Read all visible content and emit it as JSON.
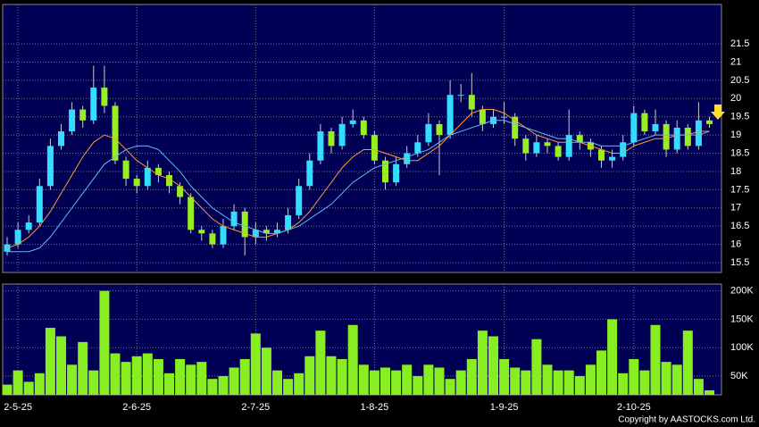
{
  "chart_data": [
    {
      "type": "candlestick",
      "categories": [
        null,
        "2-5-25",
        null,
        null,
        null,
        null,
        null,
        null,
        null,
        null,
        null,
        null,
        "2-6-25",
        null,
        null,
        null,
        null,
        null,
        null,
        null,
        null,
        null,
        null,
        "2-7-25",
        null,
        null,
        null,
        null,
        null,
        null,
        null,
        null,
        null,
        null,
        "1-8-25",
        null,
        null,
        null,
        null,
        null,
        null,
        null,
        null,
        null,
        null,
        null,
        "1-9-25",
        null,
        null,
        null,
        null,
        null,
        null,
        null,
        null,
        null,
        null,
        null,
        "2-10-25",
        null,
        null,
        null,
        null,
        null,
        null,
        null
      ],
      "open": [
        15.8,
        16.0,
        16.4,
        16.6,
        17.6,
        18.7,
        19.1,
        19.7,
        19.4,
        20.3,
        19.8,
        18.3,
        17.8,
        17.6,
        18.1,
        17.9,
        17.6,
        17.3,
        16.4,
        16.3,
        16.0,
        16.5,
        16.9,
        16.2,
        16.4,
        16.3,
        16.4,
        16.8,
        17.6,
        18.3,
        19.1,
        18.7,
        19.3,
        19.4,
        19.0,
        18.3,
        17.7,
        18.2,
        18.5,
        18.8,
        19.3,
        19.0,
        20.1,
        20.1,
        19.7,
        19.3,
        19.5,
        19.5,
        18.9,
        18.5,
        18.8,
        18.7,
        18.4,
        19.0,
        18.8,
        18.6,
        18.3,
        18.4,
        18.8,
        19.6,
        19.1,
        19.3,
        18.6,
        19.2,
        18.7,
        19.4
      ],
      "high": [
        16.2,
        16.6,
        16.8,
        17.8,
        18.9,
        19.3,
        19.9,
        19.8,
        20.9,
        20.9,
        19.9,
        18.4,
        17.9,
        18.3,
        18.2,
        18.0,
        17.7,
        17.4,
        16.5,
        16.4,
        16.7,
        17.1,
        17.0,
        16.6,
        16.5,
        16.6,
        17.0,
        17.8,
        18.5,
        19.3,
        19.2,
        19.5,
        19.7,
        19.5,
        19.1,
        18.4,
        18.4,
        18.7,
        19.0,
        19.6,
        19.4,
        20.5,
        20.4,
        20.7,
        19.8,
        19.7,
        19.9,
        19.6,
        19.0,
        19.0,
        18.9,
        18.8,
        19.7,
        19.1,
        18.9,
        18.7,
        18.6,
        19.0,
        19.8,
        19.7,
        19.7,
        19.4,
        19.4,
        19.3,
        19.9,
        19.5
      ],
      "low": [
        15.7,
        15.9,
        16.3,
        16.5,
        17.5,
        18.6,
        19.0,
        19.2,
        19.3,
        19.6,
        18.2,
        17.6,
        17.4,
        17.5,
        17.7,
        17.4,
        17.1,
        16.3,
        16.1,
        15.9,
        15.9,
        16.4,
        15.7,
        16.0,
        16.1,
        16.2,
        16.3,
        16.7,
        17.5,
        18.2,
        18.5,
        18.6,
        19.2,
        18.9,
        18.2,
        17.5,
        17.6,
        18.1,
        18.4,
        18.7,
        17.9,
        18.9,
        19.9,
        19.5,
        19.1,
        19.2,
        19.3,
        18.7,
        18.3,
        18.4,
        18.5,
        18.3,
        18.3,
        18.6,
        18.4,
        18.1,
        18.1,
        18.3,
        18.7,
        19.0,
        19.0,
        18.4,
        18.5,
        18.6,
        18.6,
        19.2
      ],
      "close": [
        16.0,
        16.4,
        16.6,
        17.6,
        18.7,
        19.1,
        19.7,
        19.4,
        20.3,
        19.8,
        18.3,
        17.8,
        17.6,
        18.1,
        17.9,
        17.6,
        17.3,
        16.4,
        16.3,
        16.0,
        16.5,
        16.9,
        16.2,
        16.4,
        16.3,
        16.4,
        16.8,
        17.6,
        18.3,
        19.1,
        18.7,
        19.3,
        19.4,
        19.0,
        18.3,
        17.7,
        18.2,
        18.5,
        18.8,
        19.3,
        19.0,
        20.1,
        20.1,
        19.7,
        19.3,
        19.5,
        19.5,
        18.9,
        18.5,
        18.8,
        18.7,
        18.4,
        19.0,
        18.8,
        18.6,
        18.3,
        18.4,
        18.8,
        19.6,
        19.1,
        19.3,
        18.6,
        19.2,
        18.7,
        19.4,
        19.3
      ],
      "up_color": "#33ddff",
      "down_color": "#99ee22",
      "series": [
        {
          "color": "#ff9933",
          "values": [
            15.9,
            16.0,
            16.2,
            16.5,
            16.9,
            17.4,
            17.9,
            18.4,
            18.8,
            19.0,
            18.9,
            18.6,
            18.3,
            18.1,
            17.9,
            17.8,
            17.6,
            17.3,
            17.0,
            16.7,
            16.5,
            16.4,
            16.3,
            16.2,
            16.2,
            16.3,
            16.4,
            16.6,
            16.9,
            17.3,
            17.7,
            18.1,
            18.4,
            18.6,
            18.6,
            18.5,
            18.4,
            18.3,
            18.3,
            18.5,
            18.7,
            19.0,
            19.3,
            19.6,
            19.7,
            19.7,
            19.6,
            19.4,
            19.2,
            19.0,
            18.9,
            18.8,
            18.8,
            18.8,
            18.7,
            18.6,
            18.5,
            18.5,
            18.7,
            18.8,
            18.9,
            18.9,
            19.0,
            19.0,
            19.1,
            19.1
          ]
        },
        {
          "color": "#66bbee",
          "values": [
            15.8,
            15.8,
            15.8,
            15.9,
            16.2,
            16.6,
            17.0,
            17.4,
            17.8,
            18.2,
            18.4,
            18.6,
            18.7,
            18.7,
            18.6,
            18.3,
            18.0,
            17.6,
            17.3,
            17.0,
            16.8,
            16.6,
            16.5,
            16.4,
            16.3,
            16.3,
            16.4,
            16.5,
            16.7,
            16.9,
            17.1,
            17.4,
            17.7,
            17.9,
            18.1,
            18.2,
            18.3,
            18.4,
            18.5,
            18.6,
            18.8,
            19.0,
            19.1,
            19.2,
            19.3,
            19.4,
            19.4,
            19.3,
            19.2,
            19.1,
            19.0,
            18.9,
            18.9,
            18.8,
            18.8,
            18.7,
            18.7,
            18.7,
            18.8,
            18.9,
            19.0,
            19.0,
            19.0,
            19.0,
            19.0,
            19.1
          ]
        }
      ],
      "ylim": [
        15.23,
        22.58
      ],
      "yticks": [
        15.5,
        16,
        16.5,
        17,
        17.5,
        18,
        18.5,
        19,
        19.5,
        20,
        20.5,
        21,
        21.5
      ],
      "grid": true
    },
    {
      "type": "bar",
      "values": [
        35000,
        60000,
        40000,
        55000,
        135000,
        120000,
        70000,
        110000,
        60000,
        200000,
        90000,
        75000,
        85000,
        90000,
        80000,
        55000,
        80000,
        70000,
        75000,
        45000,
        50000,
        65000,
        80000,
        125000,
        100000,
        60000,
        45000,
        55000,
        85000,
        130000,
        85000,
        80000,
        140000,
        70000,
        60000,
        65000,
        60000,
        70000,
        50000,
        70000,
        65000,
        45000,
        60000,
        80000,
        130000,
        120000,
        80000,
        65000,
        60000,
        115000,
        70000,
        60000,
        60000,
        50000,
        70000,
        95000,
        150000,
        55000,
        80000,
        60000,
        140000,
        75000,
        70000,
        130000,
        45000,
        25000
      ],
      "color": "#88ee22",
      "ylim": [
        17000,
        212000
      ],
      "yticks": [
        {
          "value": 50000,
          "label": "50K"
        },
        {
          "value": 100000,
          "label": "100K"
        },
        {
          "value": 150000,
          "label": "150K"
        },
        {
          "value": 200000,
          "label": "200K"
        }
      ],
      "grid": true
    }
  ],
  "footer": "Copyright by AASTOCKS.com Ltd."
}
